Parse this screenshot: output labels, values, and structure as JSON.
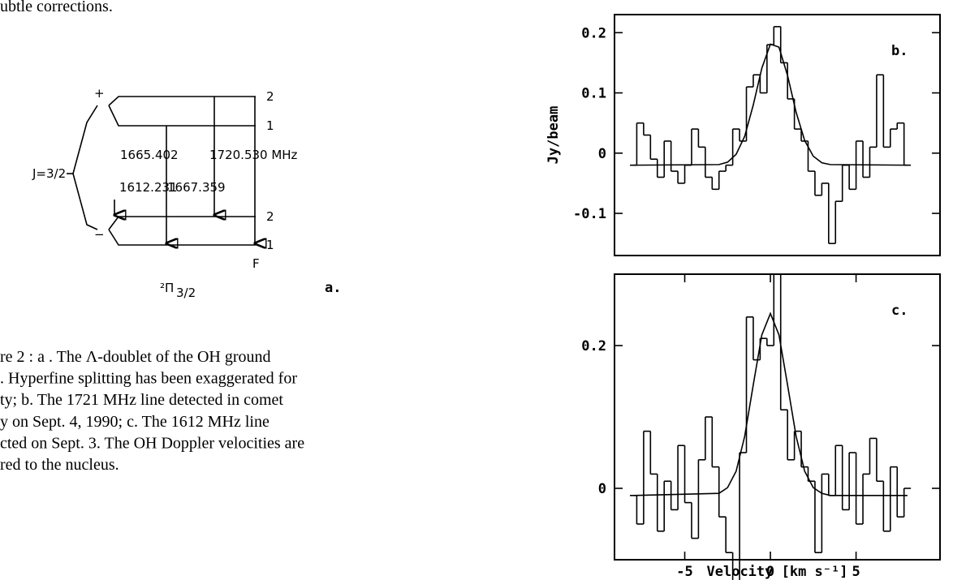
{
  "top_text": "ubtle corrections.",
  "caption": {
    "lines": [
      "re 2 : a . The Λ-doublet of the OH ground",
      ". Hyperfine splitting has been exaggerated for",
      "ty; b. The 1721 MHz line detected in comet",
      "y on Sept. 4, 1990; c. The 1612 MHz line",
      "cted on Sept. 3. The OH Doppler velocities are",
      "red to the nucleus."
    ]
  },
  "diagram": {
    "j_label": "J=3/2",
    "plus": "+",
    "minus": "−",
    "levels": [
      "2",
      "1",
      "2",
      "1"
    ],
    "f_label": "F",
    "transitions": [
      "1612.231",
      "1665.402",
      "1667.359",
      "1720.530 MHz"
    ],
    "term": "²Π",
    "term_sub": "3/2",
    "panel_label": "a."
  },
  "chart_data": [
    {
      "type": "step",
      "panel_label": "b.",
      "ylabel": "Jy/beam",
      "xlim": [
        -9.1,
        9.9
      ],
      "ylim": [
        -0.17,
        0.23
      ],
      "yticks": [
        0.2,
        0.1,
        0,
        -0.1
      ],
      "series": [
        {
          "style": "step",
          "color": "#000000",
          "x": [
            -8.0,
            -7.6,
            -7.2,
            -6.8,
            -6.4,
            -6.0,
            -5.6,
            -5.2,
            -4.8,
            -4.4,
            -4.0,
            -3.6,
            -3.2,
            -2.8,
            -2.4,
            -2.0,
            -1.6,
            -1.2,
            -0.8,
            -0.4,
            0.0,
            0.4,
            0.8,
            1.2,
            1.6,
            2.0,
            2.4,
            2.8,
            3.2,
            3.6,
            4.0,
            4.4,
            4.8,
            5.2,
            5.6,
            6.0,
            6.4,
            6.8,
            7.2,
            7.6,
            8.0
          ],
          "values": [
            -0.02,
            0.05,
            0.03,
            -0.01,
            -0.04,
            0.02,
            -0.03,
            -0.05,
            -0.02,
            0.04,
            0.01,
            -0.04,
            -0.06,
            -0.03,
            -0.02,
            0.04,
            0.02,
            0.11,
            0.13,
            0.1,
            0.18,
            0.21,
            0.15,
            0.09,
            0.04,
            0.02,
            -0.03,
            -0.07,
            -0.05,
            -0.15,
            -0.08,
            -0.02,
            -0.06,
            0.02,
            -0.04,
            0.01,
            0.13,
            0.01,
            0.04,
            0.05,
            -0.02
          ]
        },
        {
          "style": "line",
          "color": "#000000",
          "x": [
            -8,
            -3,
            -2.5,
            -2,
            -1.5,
            -1,
            -0.5,
            0,
            0.5,
            1,
            1.5,
            2,
            2.5,
            3,
            3.5,
            8
          ],
          "values": [
            -0.02,
            -0.019,
            -0.015,
            -0.002,
            0.028,
            0.08,
            0.141,
            0.181,
            0.176,
            0.129,
            0.068,
            0.021,
            -0.005,
            -0.016,
            -0.019,
            -0.02
          ]
        }
      ]
    },
    {
      "type": "step",
      "panel_label": "c.",
      "xlabel": "Velocity [km s⁻¹]",
      "xlim": [
        -9.1,
        9.9
      ],
      "xticks": [
        -5,
        0,
        5
      ],
      "ylim": [
        -0.1,
        0.3
      ],
      "yticks": [
        0.2,
        0
      ],
      "series": [
        {
          "style": "step",
          "color": "#000000",
          "x": [
            -8.0,
            -7.6,
            -7.2,
            -6.8,
            -6.4,
            -6.0,
            -5.6,
            -5.2,
            -4.8,
            -4.4,
            -4.0,
            -3.6,
            -3.2,
            -2.8,
            -2.4,
            -2.0,
            -1.6,
            -1.2,
            -0.8,
            -0.4,
            0.0,
            0.4,
            0.8,
            1.2,
            1.6,
            2.0,
            2.4,
            2.8,
            3.2,
            3.6,
            4.0,
            4.4,
            4.8,
            5.2,
            5.6,
            6.0,
            6.4,
            6.8,
            7.2,
            7.6,
            8.0
          ],
          "values": [
            -0.01,
            -0.05,
            0.08,
            0.02,
            -0.06,
            0.01,
            -0.03,
            0.06,
            -0.02,
            -0.07,
            0.04,
            0.1,
            0.03,
            -0.04,
            -0.09,
            -0.16,
            0.05,
            0.24,
            0.18,
            0.21,
            0.2,
            0.3,
            0.11,
            0.04,
            0.08,
            0.03,
            0.01,
            -0.09,
            0.02,
            -0.01,
            0.06,
            -0.03,
            0.05,
            -0.05,
            0.02,
            0.07,
            0.01,
            -0.06,
            0.03,
            -0.04,
            0.0
          ]
        },
        {
          "style": "line",
          "color": "#000000",
          "x": [
            -8,
            -3,
            -2.5,
            -2,
            -1.5,
            -1,
            -0.5,
            0,
            0.5,
            1,
            1.5,
            2,
            2.5,
            3,
            3.5,
            8
          ],
          "values": [
            -0.01,
            -0.007,
            0.001,
            0.024,
            0.073,
            0.145,
            0.215,
            0.245,
            0.215,
            0.145,
            0.073,
            0.024,
            0.001,
            -0.007,
            -0.01,
            -0.01
          ]
        }
      ]
    }
  ]
}
